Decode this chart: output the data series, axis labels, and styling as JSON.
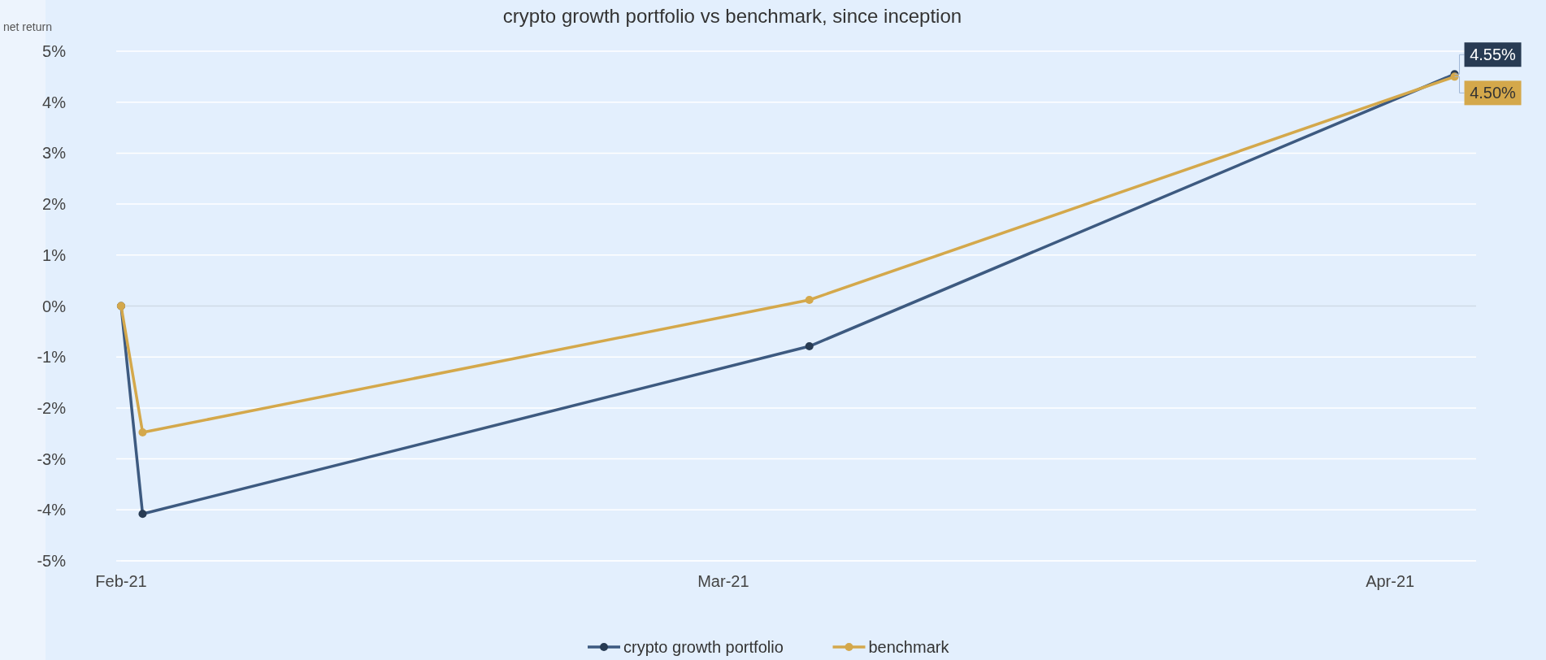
{
  "chart_data": {
    "type": "line",
    "title": "crypto growth portfolio vs benchmark, since inception",
    "ylabel": "net return",
    "xlim": [
      "2021-02-01",
      "2021-04-05"
    ],
    "xticks": [
      {
        "value": "2021-02-01",
        "label": "Feb-21"
      },
      {
        "value": "2021-03-01",
        "label": "Mar-21"
      },
      {
        "value": "2021-04-01",
        "label": "Apr-21"
      }
    ],
    "ylim": [
      -5,
      5
    ],
    "yticks": [
      {
        "value": -5,
        "label": "-5%"
      },
      {
        "value": -4,
        "label": "-4%"
      },
      {
        "value": -3,
        "label": "-3%"
      },
      {
        "value": -2,
        "label": "-2%"
      },
      {
        "value": -1,
        "label": "-1%"
      },
      {
        "value": 0,
        "label": "0%"
      },
      {
        "value": 1,
        "label": "1%"
      },
      {
        "value": 2,
        "label": "2%"
      },
      {
        "value": 3,
        "label": "3%"
      },
      {
        "value": 4,
        "label": "4%"
      },
      {
        "value": 5,
        "label": "5%"
      }
    ],
    "grid": "y",
    "legend": "bottom",
    "marker": "circle",
    "line_style": "solid",
    "series": [
      {
        "name": "crypto growth portfolio",
        "color": "#3d5a80",
        "x": [
          "2021-02-01",
          "2021-02-02",
          "2021-03-05",
          "2021-04-04"
        ],
        "values": [
          0,
          -4.08,
          -0.79,
          4.55
        ],
        "value_labels": [
          null,
          null,
          null,
          "4.55%"
        ]
      },
      {
        "name": "benchmark",
        "color": "#d4a84b",
        "x": [
          "2021-02-01",
          "2021-02-02",
          "2021-03-05",
          "2021-04-04"
        ],
        "values": [
          0,
          -2.48,
          0.12,
          4.5
        ],
        "value_labels": [
          null,
          null,
          null,
          "4.50%"
        ]
      }
    ]
  }
}
